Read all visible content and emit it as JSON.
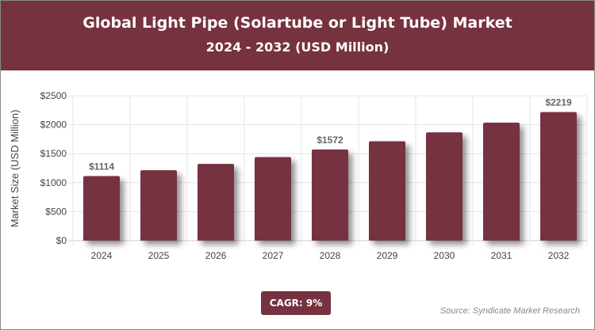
{
  "header": {
    "title": "Global Light Pipe (Solartube or Light Tube) Market",
    "subtitle": "2024 - 2032 (USD Million)"
  },
  "cagr_label": "CAGR: 9%",
  "source": "Source: Syndicate Market Research",
  "colors": {
    "brand": "#76323f",
    "bar": "#76323f"
  },
  "chart_data": {
    "type": "bar",
    "title": "Global Light Pipe (Solartube or Light Tube) Market",
    "subtitle": "2024 - 2032 (USD Million)",
    "ylabel": "Market Size (USD Million)",
    "xlabel": "",
    "categories": [
      "2024",
      "2025",
      "2026",
      "2027",
      "2028",
      "2029",
      "2030",
      "2031",
      "2032"
    ],
    "values": [
      1114,
      1214,
      1323,
      1442,
      1572,
      1714,
      1868,
      2036,
      2219
    ],
    "data_labels": {
      "0": "$1114",
      "4": "$1572",
      "8": "$2219"
    },
    "ylim": [
      0,
      2500
    ],
    "yticks": [
      "$0",
      "$500",
      "$1000",
      "$1500",
      "$2000",
      "$2500"
    ],
    "grid": true
  }
}
